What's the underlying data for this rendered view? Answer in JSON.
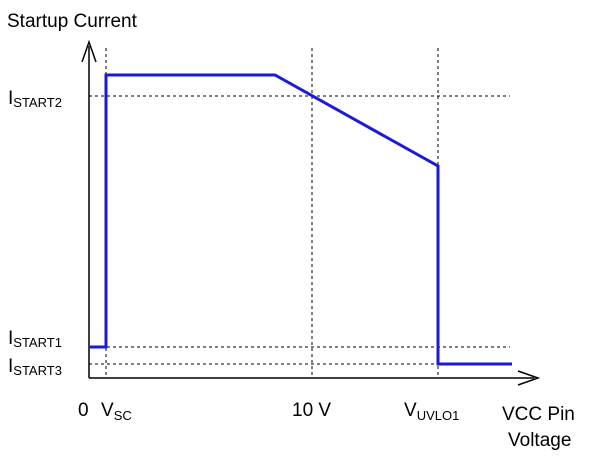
{
  "diagram": {
    "y_axis_title": "Startup Current",
    "x_axis_title_line1": "VCC Pin",
    "x_axis_title_line2": "Voltage",
    "y_levels": [
      {
        "main": "I",
        "sub": "START2"
      },
      {
        "main": "I",
        "sub": "START1"
      },
      {
        "main": "I",
        "sub": "START3"
      }
    ],
    "x_ticks": [
      {
        "main": "0",
        "sub": ""
      },
      {
        "main": "V",
        "sub": "SC"
      },
      {
        "main": "10 V",
        "sub": ""
      },
      {
        "main": "V",
        "sub": "UVLO1"
      }
    ],
    "colors": {
      "curve": "#1a1adb",
      "axis": "#000000",
      "guide": "#000000"
    }
  }
}
